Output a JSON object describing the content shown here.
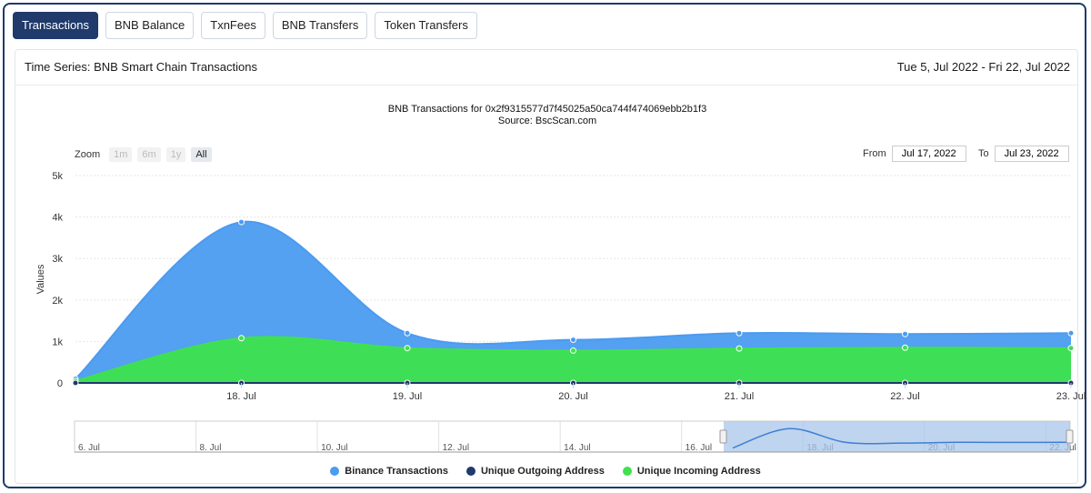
{
  "tabs": [
    {
      "label": "Transactions",
      "active": true
    },
    {
      "label": "BNB Balance",
      "active": false
    },
    {
      "label": "TxnFees",
      "active": false
    },
    {
      "label": "BNB Transfers",
      "active": false
    },
    {
      "label": "Token Transfers",
      "active": false
    }
  ],
  "panel": {
    "title": "Time Series: BNB Smart Chain Transactions",
    "date_range": "Tue 5, Jul 2022 - Fri 22, Jul 2022"
  },
  "zoom": {
    "label": "Zoom",
    "buttons": [
      {
        "label": "1m",
        "active": false
      },
      {
        "label": "6m",
        "active": false
      },
      {
        "label": "1y",
        "active": false
      },
      {
        "label": "All",
        "active": true
      }
    ]
  },
  "range_selector": {
    "from_label": "From",
    "from_value": "Jul 17, 2022",
    "to_label": "To",
    "to_value": "Jul 23, 2022"
  },
  "colors": {
    "transactions": "#4b9bf0",
    "outgoing": "#1f3a6b",
    "incoming": "#3ee24e",
    "navigator_fill": "#a9c5ea"
  },
  "chart_data": {
    "type": "area",
    "title": "BNB Transactions for 0x2f9315577d7f45025a50ca744f474069ebb2b1f3",
    "subtitle": "Source: BscScan.com",
    "xlabel": "",
    "ylabel": "Values",
    "x": [
      "Jul 17",
      "Jul 18",
      "Jul 19",
      "Jul 20",
      "Jul 21",
      "Jul 22",
      "Jul 23"
    ],
    "x_ticks": [
      "18. Jul",
      "19. Jul",
      "20. Jul",
      "21. Jul",
      "22. Jul",
      "23. Jul"
    ],
    "y_ticks": [
      "0",
      "1k",
      "2k",
      "3k",
      "4k",
      "5k"
    ],
    "ylim": [
      0,
      5000
    ],
    "grid": true,
    "legend_position": "bottom",
    "series": [
      {
        "name": "Binance Transactions",
        "values": [
          100,
          3880,
          1200,
          1040,
          1200,
          1180,
          1200
        ]
      },
      {
        "name": "Unique Outgoing Address",
        "values": [
          0,
          0,
          0,
          0,
          0,
          0,
          0
        ]
      },
      {
        "name": "Unique Incoming Address",
        "values": [
          50,
          1080,
          840,
          780,
          830,
          850,
          840
        ]
      }
    ],
    "navigator": {
      "x_ticks": [
        "6. Jul",
        "8. Jul",
        "10. Jul",
        "12. Jul",
        "14. Jul",
        "16. Jul",
        "18. Jul",
        "20. Jul",
        "22. Jul"
      ],
      "selected_range": [
        "Jul 17",
        "Jul 23"
      ]
    }
  }
}
